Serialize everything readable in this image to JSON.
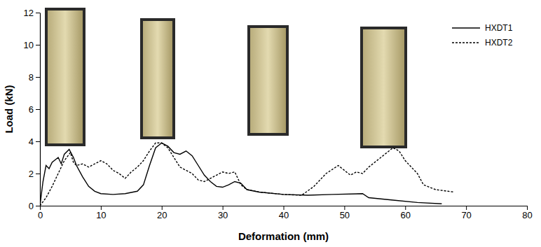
{
  "chart_data": {
    "type": "line",
    "x_label": "Deformation (mm)",
    "y_label": "Load (kN)",
    "xlim": [
      0,
      80
    ],
    "xticks": [
      0,
      10,
      20,
      30,
      40,
      50,
      60,
      70,
      80
    ],
    "ylim": [
      0,
      12
    ],
    "yticks": [
      0,
      2,
      4,
      6,
      8,
      10,
      12
    ],
    "legend": "upper right",
    "grid": false,
    "series": [
      {
        "name": "HXDT1",
        "color": "#000000",
        "line_style": "solid",
        "x": [
          0,
          0.5,
          1,
          1.5,
          2,
          3,
          3.5,
          4,
          4.8,
          5.5,
          6,
          7,
          8,
          9,
          10,
          12,
          14,
          16,
          17,
          18,
          19,
          20,
          21,
          22,
          23,
          24,
          25,
          26,
          27,
          28,
          29,
          30,
          31,
          32,
          33,
          34,
          36,
          40,
          44,
          48,
          53,
          54,
          58,
          62,
          66
        ],
        "values": [
          0,
          1.5,
          2.5,
          2.3,
          2.7,
          3.0,
          2.6,
          3.2,
          3.5,
          3.0,
          2.5,
          1.8,
          1.2,
          0.9,
          0.75,
          0.7,
          0.75,
          0.9,
          1.3,
          2.5,
          3.6,
          3.9,
          3.7,
          3.3,
          3.2,
          3.4,
          3.1,
          2.5,
          1.9,
          1.5,
          1.2,
          1.15,
          1.3,
          1.5,
          1.4,
          1.0,
          0.85,
          0.7,
          0.65,
          0.7,
          0.75,
          0.5,
          0.35,
          0.2,
          0.12
        ]
      },
      {
        "name": "HXDT2",
        "color": "#000000",
        "line_style": "dotted",
        "x": [
          0,
          1,
          2,
          3,
          4,
          5,
          5.5,
          6,
          7,
          8,
          9,
          10,
          11,
          12,
          13,
          14,
          15,
          16,
          17,
          18,
          19,
          20,
          21,
          22,
          23,
          24,
          25,
          26,
          27,
          28,
          29,
          30,
          31,
          32,
          33,
          34,
          36,
          40,
          43,
          45,
          47,
          49,
          50,
          51,
          52,
          53,
          54,
          56,
          58,
          59,
          60,
          62,
          63,
          65,
          67,
          68
        ],
        "values": [
          0,
          0.5,
          1.2,
          2.0,
          2.8,
          3.3,
          2.7,
          2.5,
          2.6,
          2.4,
          2.6,
          2.8,
          2.6,
          2.2,
          2.0,
          1.7,
          2.1,
          2.4,
          2.8,
          3.4,
          3.9,
          3.9,
          3.6,
          3.0,
          2.4,
          2.2,
          2.0,
          1.6,
          1.5,
          1.7,
          1.9,
          2.1,
          2.0,
          2.1,
          1.3,
          1.0,
          0.85,
          0.7,
          0.65,
          1.2,
          2.0,
          2.5,
          2.2,
          1.9,
          2.1,
          2.0,
          2.4,
          3.0,
          3.6,
          3.4,
          2.8,
          2.0,
          1.3,
          1.0,
          0.9,
          0.85
        ]
      }
    ]
  }
}
